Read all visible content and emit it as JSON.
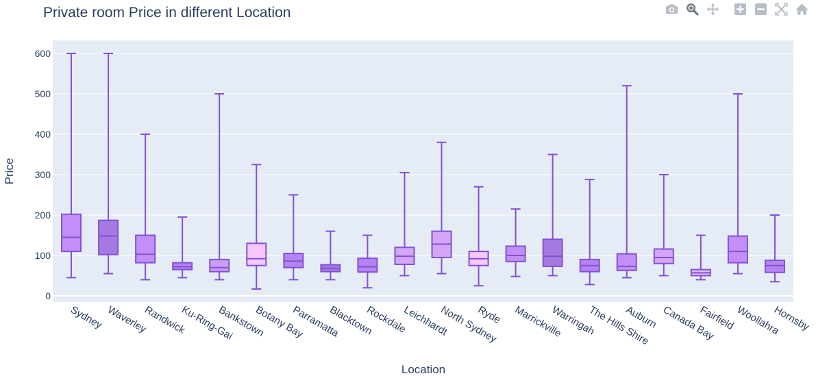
{
  "chart_data": {
    "type": "box",
    "title": "Private room Price in different Location",
    "xlabel": "Location",
    "ylabel": "Price",
    "ylim": [
      -15,
      620
    ],
    "yticks": [
      0,
      100,
      200,
      300,
      400,
      500,
      600
    ],
    "grid": true,
    "legend": "none",
    "categories": [
      "Sydney",
      "Waverley",
      "Randwick",
      "Ku-Ring-Gai",
      "Bankstown",
      "Botany Bay",
      "Parramatta",
      "Blacktown",
      "Rockdale",
      "Leichhardt",
      "North Sydney",
      "Ryde",
      "Marrickville",
      "Warringah",
      "The Hills Shire",
      "Auburn",
      "Canada Bay",
      "Fairfield",
      "Woollahra",
      "Hornsby"
    ],
    "boxes": [
      {
        "min": 45,
        "q1": 110,
        "median": 145,
        "q3": 202,
        "max": 600,
        "color": "#c38ef8"
      },
      {
        "min": 55,
        "q1": 102,
        "median": 148,
        "q3": 187,
        "max": 600,
        "color": "#a479e2"
      },
      {
        "min": 40,
        "q1": 82,
        "median": 103,
        "q3": 150,
        "max": 400,
        "color": "#c38ef8"
      },
      {
        "min": 45,
        "q1": 65,
        "median": 72,
        "q3": 82,
        "max": 195,
        "color": "#b683f3"
      },
      {
        "min": 40,
        "q1": 60,
        "median": 70,
        "q3": 90,
        "max": 500,
        "color": "#c99cf5"
      },
      {
        "min": 17,
        "q1": 75,
        "median": 92,
        "q3": 130,
        "max": 325,
        "color": "#f6c6ff"
      },
      {
        "min": 40,
        "q1": 70,
        "median": 86,
        "q3": 105,
        "max": 250,
        "color": "#b683f3"
      },
      {
        "min": 40,
        "q1": 60,
        "median": 68,
        "q3": 77,
        "max": 160,
        "color": "#a479e2"
      },
      {
        "min": 20,
        "q1": 59,
        "median": 72,
        "q3": 93,
        "max": 150,
        "color": "#b683f3"
      },
      {
        "min": 50,
        "q1": 78,
        "median": 98,
        "q3": 120,
        "max": 305,
        "color": "#d5a6f7"
      },
      {
        "min": 55,
        "q1": 95,
        "median": 128,
        "q3": 160,
        "max": 380,
        "color": "#d5a6f7"
      },
      {
        "min": 25,
        "q1": 75,
        "median": 92,
        "q3": 110,
        "max": 270,
        "color": "#f6c6ff"
      },
      {
        "min": 48,
        "q1": 85,
        "median": 100,
        "q3": 123,
        "max": 215,
        "color": "#c38ef8"
      },
      {
        "min": 50,
        "q1": 73,
        "median": 98,
        "q3": 140,
        "max": 350,
        "color": "#a479e2"
      },
      {
        "min": 28,
        "q1": 60,
        "median": 75,
        "q3": 90,
        "max": 288,
        "color": "#b683f3"
      },
      {
        "min": 45,
        "q1": 63,
        "median": 73,
        "q3": 104,
        "max": 520,
        "color": "#c38ef8"
      },
      {
        "min": 50,
        "q1": 80,
        "median": 95,
        "q3": 116,
        "max": 300,
        "color": "#d5a6f7"
      },
      {
        "min": 40,
        "q1": 50,
        "median": 57,
        "q3": 65,
        "max": 150,
        "color": "#e2b8fb"
      },
      {
        "min": 55,
        "q1": 82,
        "median": 110,
        "q3": 148,
        "max": 500,
        "color": "#c38ef8"
      },
      {
        "min": 35,
        "q1": 58,
        "median": 75,
        "q3": 88,
        "max": 200,
        "color": "#b683f3"
      }
    ],
    "line_color": "#8352cf",
    "plot_bg": "#e5ecf6",
    "grid_color": "#ffffff",
    "text_color": "#2a3f5f"
  },
  "modebar": {
    "icons": [
      "camera-icon",
      "zoom-icon",
      "pan-icon",
      "zoom-in-icon",
      "zoom-out-icon",
      "autoscale-icon",
      "reset-axes-icon"
    ],
    "icon_color": "#b6bec7",
    "active_color": "#6b7480"
  }
}
